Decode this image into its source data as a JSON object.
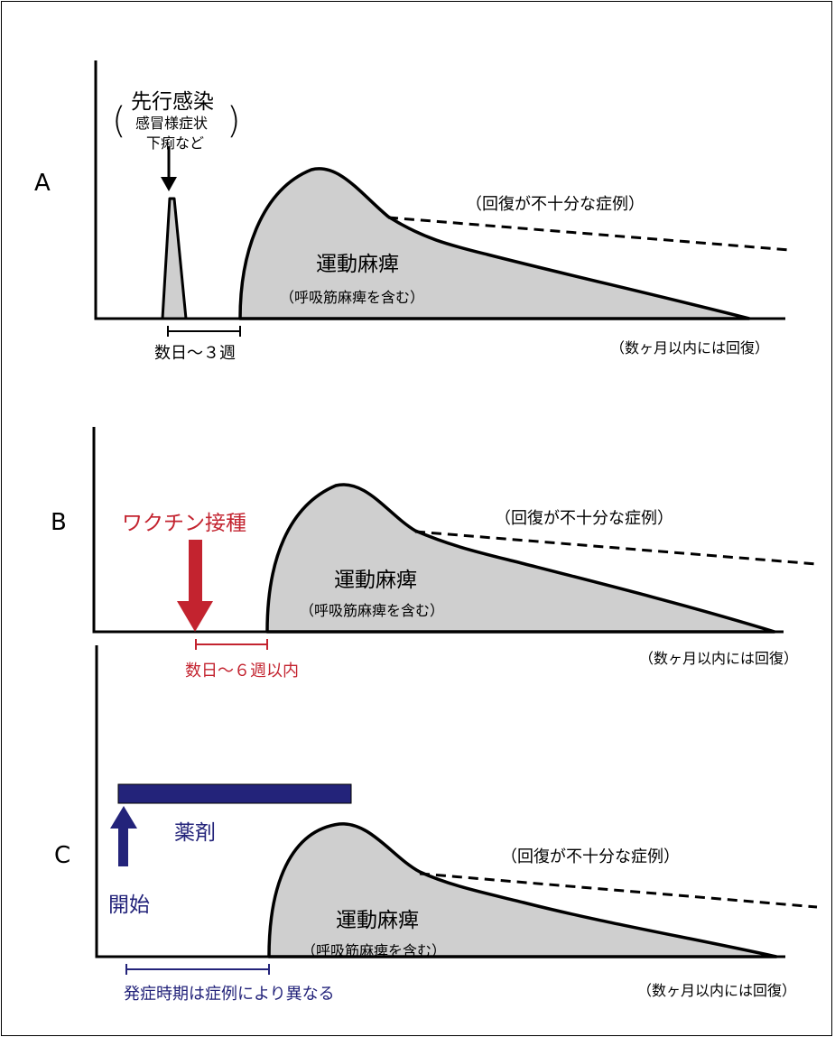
{
  "panels": [
    {
      "letter": "A",
      "trigger_title": "先行感染",
      "trigger_detail_1": "感冒様症状",
      "trigger_detail_2": "下痢など",
      "interval": "数日～３週",
      "main_label": "運動麻痺",
      "sub_label": "（呼吸筋麻痺を含む）",
      "poor_recovery": "（回復が不十分な症例）",
      "recovery": "（数ヶ月以内には回復）"
    },
    {
      "letter": "B",
      "trigger_title": "ワクチン接種",
      "interval": "数日～６週以内",
      "main_label": "運動麻痺",
      "sub_label": "（呼吸筋麻痺を含む）",
      "poor_recovery": "（回復が不十分な症例）",
      "recovery": "（数ヶ月以内には回復）"
    },
    {
      "letter": "C",
      "drug": "薬剤",
      "start": "開始",
      "interval": "発症時期は症例により異なる",
      "main_label": "運動麻痺",
      "sub_label": "（呼吸筋麻痺を含む）",
      "poor_recovery": "（回復が不十分な症例）",
      "recovery": "（数ヶ月以内には回復）"
    }
  ],
  "colors": {
    "fill": "#cfcfcf",
    "vaccine": "#c3232f",
    "drug": "#23237a"
  }
}
